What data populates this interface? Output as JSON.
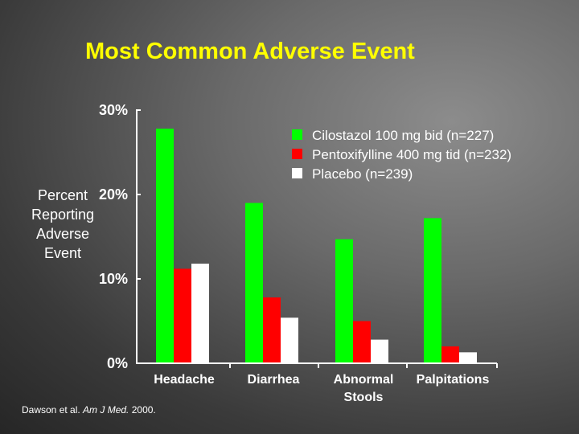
{
  "slide": {
    "title": "Most Common Adverse Event",
    "citation_authors": "Dawson et al. ",
    "citation_journal": "Am J Med.",
    "citation_year": " 2000."
  },
  "chart_data": {
    "type": "bar",
    "title": "Most Common Adverse Event",
    "ylabel": "Percent Reporting Adverse Event",
    "ylabel_lines": [
      "Percent",
      "Reporting",
      "Adverse",
      "Event"
    ],
    "xlabel": "",
    "ylim": [
      0,
      30
    ],
    "yticks": [
      0,
      10,
      20,
      30
    ],
    "ytick_labels": [
      "0%",
      "10%",
      "20%",
      "30%"
    ],
    "categories": [
      "Headache",
      "Diarrhea",
      "Abnormal Stools",
      "Palpitations"
    ],
    "category_lines": [
      [
        "Headache"
      ],
      [
        "Diarrhea"
      ],
      [
        "Abnormal",
        "Stools"
      ],
      [
        "Palpitations"
      ]
    ],
    "series": [
      {
        "name": "Cilostazol 100 mg bid (n=227)",
        "color": "#00ff00",
        "values": [
          27.8,
          19.0,
          14.7,
          17.2
        ]
      },
      {
        "name": "Pentoxifylline 400 mg tid (n=232)",
        "color": "#ff0000",
        "values": [
          11.2,
          7.8,
          5.0,
          2.0
        ]
      },
      {
        "name": "Placebo (n=239)",
        "color": "#ffffff",
        "values": [
          11.8,
          5.4,
          2.8,
          1.3
        ]
      }
    ],
    "legend_position": "top-right",
    "grid": false
  }
}
